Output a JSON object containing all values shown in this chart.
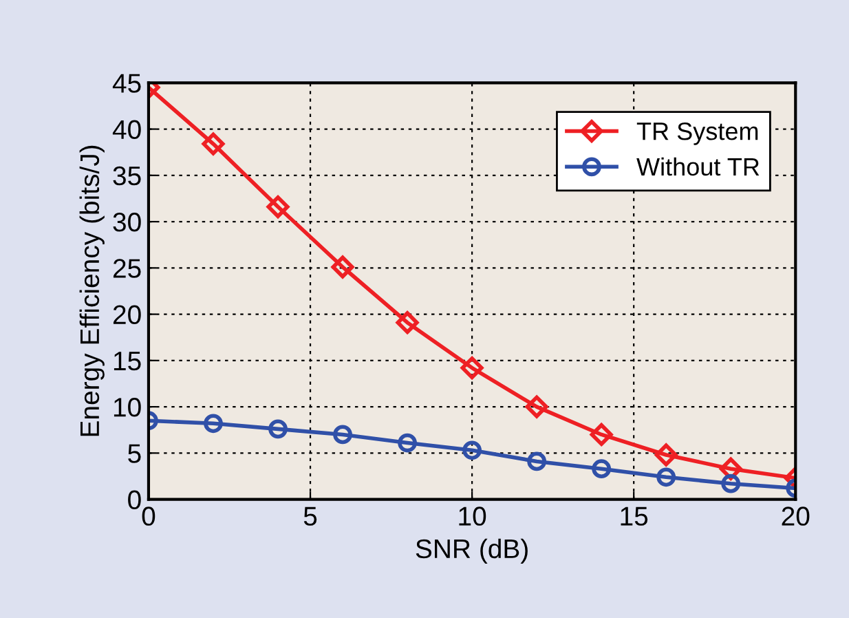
{
  "chart_data": {
    "type": "line",
    "xlabel": "SNR (dB)",
    "ylabel": "Energy Efficiency (bits/J)",
    "x": [
      0,
      2,
      4,
      6,
      8,
      10,
      12,
      14,
      16,
      18,
      20
    ],
    "series": [
      {
        "name": "TR System",
        "color": "#ee2024",
        "marker": "diamond",
        "values": [
          44.5,
          38.4,
          31.6,
          25.1,
          19.1,
          14.2,
          10.0,
          7.0,
          4.8,
          3.3,
          2.3
        ]
      },
      {
        "name": "Without TR",
        "color": "#3050a8",
        "marker": "circle",
        "values": [
          8.5,
          8.2,
          7.6,
          7.0,
          6.1,
          5.3,
          4.1,
          3.3,
          2.4,
          1.7,
          1.2
        ]
      }
    ],
    "xlim": [
      0,
      20
    ],
    "xticks": [
      0,
      5,
      10,
      15,
      20
    ],
    "ylim": [
      0,
      45
    ],
    "yticks": [
      0,
      5,
      10,
      15,
      20,
      25,
      30,
      35,
      40,
      45
    ],
    "grid": true,
    "legend": "top right",
    "line_style": "solid"
  }
}
